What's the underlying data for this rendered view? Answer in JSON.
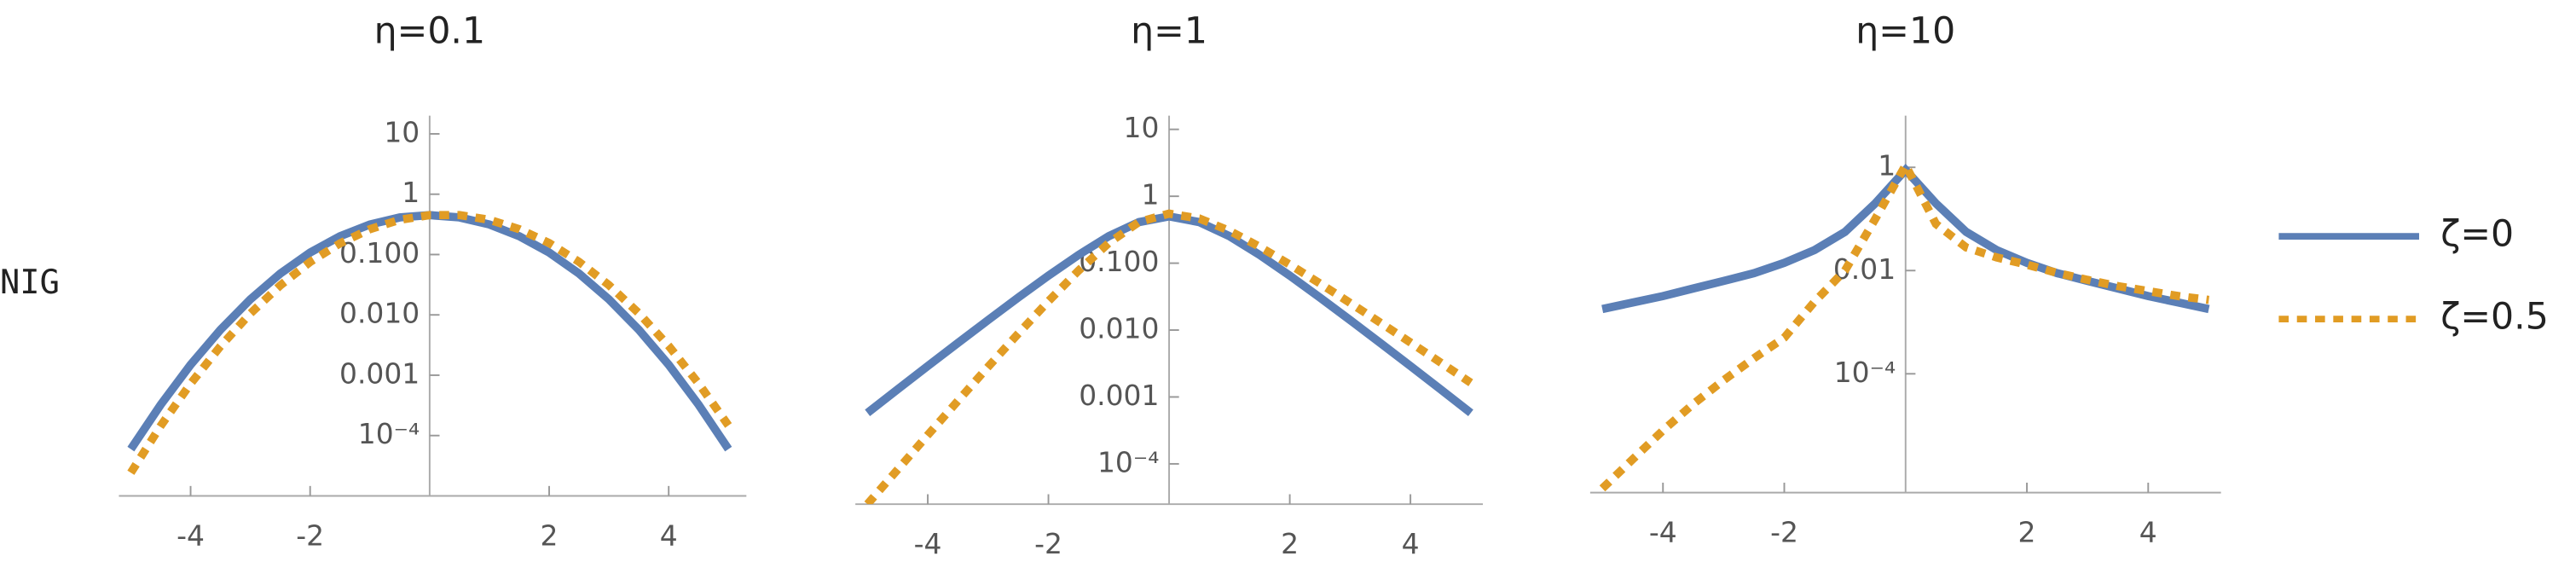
{
  "row_label": "NIG",
  "chart_data": [
    {
      "type": "line",
      "title": "η=0.1",
      "ylog": true,
      "grid": false,
      "legend": "right",
      "x": [
        -5,
        -4.5,
        -4,
        -3.5,
        -3,
        -2.5,
        -2,
        -1.5,
        -1,
        -0.5,
        0,
        0.5,
        1,
        1.5,
        2,
        2.5,
        3,
        3.5,
        4,
        4.5,
        5
      ],
      "xlim": [
        -5.2,
        5.3
      ],
      "xticks": [
        -4,
        -2,
        2,
        4
      ],
      "ylim": [
        1e-05,
        20
      ],
      "yticks": [
        10,
        1,
        {
          "value": 0.1,
          "label": "0.100"
        },
        {
          "value": 0.01,
          "label": "0.010"
        },
        {
          "value": 0.001,
          "label": "0.001"
        },
        {
          "value": 0.0001,
          "label": "10⁻⁴"
        }
      ],
      "series": [
        {
          "name": "ζ=0",
          "color": "#5b7fb6",
          "style": "solid",
          "values": [
            5.96e-05,
            0.000325,
            0.00149,
            0.00567,
            0.0181,
            0.0483,
            0.108,
            0.201,
            0.315,
            0.412,
            0.45,
            0.412,
            0.315,
            0.201,
            0.108,
            0.0483,
            0.0181,
            0.00567,
            0.00149,
            0.000325,
            5.96e-05
          ]
        },
        {
          "name": "ζ=0.5",
          "color": "#e19c24",
          "style": "dashed",
          "values": [
            2.42e-05,
            0.000145,
            0.000725,
            0.00302,
            0.01055,
            0.0308,
            0.0754,
            0.153,
            0.263,
            0.377,
            0.45,
            0.451,
            0.377,
            0.263,
            0.155,
            0.0757,
            0.0311,
            0.01065,
            0.00306,
            0.00073,
            0.000147
          ]
        }
      ]
    },
    {
      "type": "line",
      "title": "η=1",
      "ylog": true,
      "grid": false,
      "x": [
        -5,
        -4.5,
        -4,
        -3.5,
        -3,
        -2.5,
        -2,
        -1.5,
        -1,
        -0.5,
        0,
        0.5,
        1,
        1.5,
        2,
        2.5,
        3,
        3.5,
        4,
        4.5,
        5
      ],
      "xlim": [
        -5.2,
        5.2
      ],
      "xticks": [
        -4,
        -2,
        2,
        4
      ],
      "ylim": [
        2.5e-05,
        16
      ],
      "yticks": [
        10,
        1,
        {
          "value": 0.1,
          "label": "0.100"
        },
        {
          "value": 0.01,
          "label": "0.010"
        },
        {
          "value": 0.001,
          "label": "0.001"
        },
        {
          "value": 0.0001,
          "label": "10⁻⁴"
        }
      ],
      "series": [
        {
          "color": "#5b7fb6",
          "style": "solid",
          "values": [
            0.000578,
            0.0013,
            0.0029,
            0.00642,
            0.0141,
            0.0306,
            0.0651,
            0.133,
            0.253,
            0.411,
            0.5,
            0.411,
            0.253,
            0.133,
            0.0651,
            0.0306,
            0.0141,
            0.00642,
            0.0029,
            0.0013,
            0.000578
          ]
        },
        {
          "color": "#e19c24",
          "style": "dashed",
          "values": [
            2.5e-05,
            8.2e-05,
            0.00027,
            0.000876,
            0.00282,
            0.00884,
            0.027,
            0.0776,
            0.2,
            0.412,
            0.55,
            0.465,
            0.305,
            0.176,
            0.0952,
            0.0497,
            0.0255,
            0.01293,
            0.00652,
            0.00327,
            0.00163
          ]
        }
      ]
    },
    {
      "type": "line",
      "title": "η=10",
      "ylog": true,
      "grid": false,
      "x": [
        -5,
        -4.5,
        -4,
        -3.5,
        -3,
        -2.5,
        -2,
        -1.5,
        -1,
        -0.5,
        0,
        0.5,
        1,
        1.5,
        2,
        2.5,
        3,
        3.5,
        4,
        4.5,
        5
      ],
      "xlim": [
        -5.2,
        5.2
      ],
      "xticks": [
        -4,
        -2,
        2,
        4
      ],
      "ylim": [
        5e-07,
        10
      ],
      "yticks": [
        1,
        0.01,
        {
          "value": 0.0001,
          "label": "10⁻⁴"
        }
      ],
      "series": [
        {
          "color": "#5b7fb6",
          "style": "solid",
          "values": [
            0.0018,
            0.0024,
            0.0032,
            0.0045,
            0.0063,
            0.0089,
            0.0141,
            0.025,
            0.056,
            0.2,
            0.89,
            0.2,
            0.056,
            0.025,
            0.0141,
            0.0089,
            0.0063,
            0.0045,
            0.0032,
            0.0024,
            0.0018
          ]
        },
        {
          "color": "#e19c24",
          "style": "dashed",
          "values": [
            6e-07,
            2.2e-06,
            8e-06,
            2.6e-05,
            7.5e-05,
            0.0002,
            0.0005,
            0.0025,
            0.01,
            0.1,
            1.1,
            0.08,
            0.028,
            0.018,
            0.013,
            0.009,
            0.0066,
            0.005,
            0.004,
            0.0032,
            0.0027
          ]
        }
      ]
    }
  ]
}
